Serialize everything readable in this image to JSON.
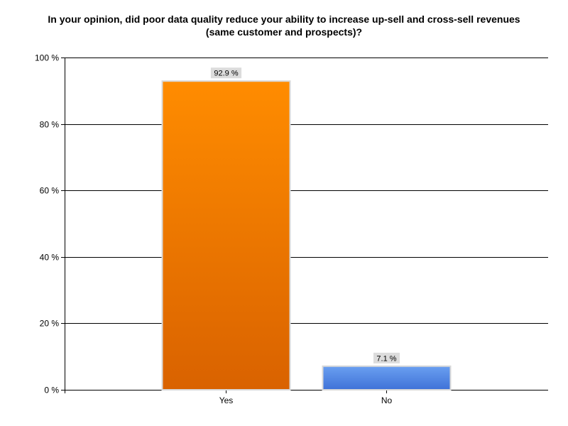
{
  "chart_data": {
    "type": "bar",
    "title": "In your opinion, did poor data quality reduce your ability to increase up-sell and cross-sell revenues (same customer and prospects)?",
    "categories": [
      "Yes",
      "No"
    ],
    "values": [
      92.9,
      7.1
    ],
    "data_labels": [
      "92.9 %",
      "7.1 %"
    ],
    "ylim": [
      0,
      100
    ],
    "y_ticks": [
      0,
      20,
      40,
      60,
      80,
      100
    ],
    "y_tick_labels": [
      "0 %",
      "20 %",
      "40 %",
      "60 %",
      "80 %",
      "100 %"
    ],
    "grid": true,
    "legend": "none",
    "colors": {
      "Yes": {
        "top": "#ff8c00",
        "bottom": "#d96200"
      },
      "No": {
        "top": "#6a9ff0",
        "bottom": "#3f72d8"
      },
      "bar_border": "#d8d8d8",
      "label_background": "#dcdcdc"
    }
  }
}
